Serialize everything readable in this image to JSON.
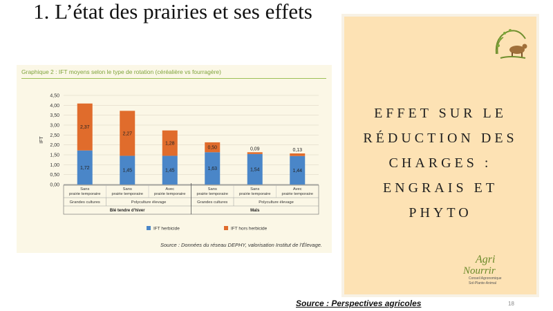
{
  "slide": {
    "title": "1. L’état des prairies et ses effets",
    "panel_text": "EFFET SUR LE RÉDUCTION DES CHARGES : ENGRAIS ET PHYTO",
    "source": "Source : Perspectives agricoles",
    "page_number": "18",
    "logo": {
      "agri": "Agri",
      "nourrir": "Nourrir",
      "sub1": "Conseil Agronomique",
      "sub2": "Sol-Plante-Animal"
    }
  },
  "chart_data": {
    "type": "bar",
    "title": "Graphique 2 : IFT moyens selon le type de rotation (céréalière vs fourragère)",
    "ylabel": "IFT",
    "ylim": [
      0,
      4.5
    ],
    "yticks": [
      "0,00",
      "0,50",
      "1,00",
      "1,50",
      "2,00",
      "2,50",
      "3,00",
      "3,50",
      "4,00",
      "4,50"
    ],
    "categories": [
      "Sans prairie temporaire",
      "Sans prairie temporaire",
      "Avec prairie temporaire",
      "Sans prairie temporaire",
      "Sans prairie temporaire",
      "Avec prairie temporaire"
    ],
    "systems": [
      {
        "label": "Grandes cultures",
        "span": 1
      },
      {
        "label": "Polyculture élevage",
        "span": 2
      },
      {
        "label": "Grandes cultures",
        "span": 1
      },
      {
        "label": "Polyculture élevage",
        "span": 2
      }
    ],
    "crops": [
      {
        "label": "Blé tendre d’hiver",
        "span": 3
      },
      {
        "label": "Maïs",
        "span": 3
      }
    ],
    "series": [
      {
        "name": "IFT herbicide",
        "color": "#4a86c8",
        "values": [
          1.72,
          1.45,
          1.45,
          1.63,
          1.54,
          1.44
        ],
        "labels": [
          "1,72",
          "1,45",
          "1,45",
          "1,63",
          "1,54",
          "1,44"
        ]
      },
      {
        "name": "IFT hors herbicide",
        "color": "#e06c2c",
        "values": [
          2.37,
          2.27,
          1.28,
          0.5,
          0.09,
          0.13
        ],
        "labels": [
          "2,37",
          "2,27",
          "1,28",
          "0,50",
          "0,09",
          "0,13"
        ]
      }
    ],
    "legend_position": "bottom",
    "source": "Source : Données du réseau DEPHY, valorisation Institut de l’Élevage."
  }
}
